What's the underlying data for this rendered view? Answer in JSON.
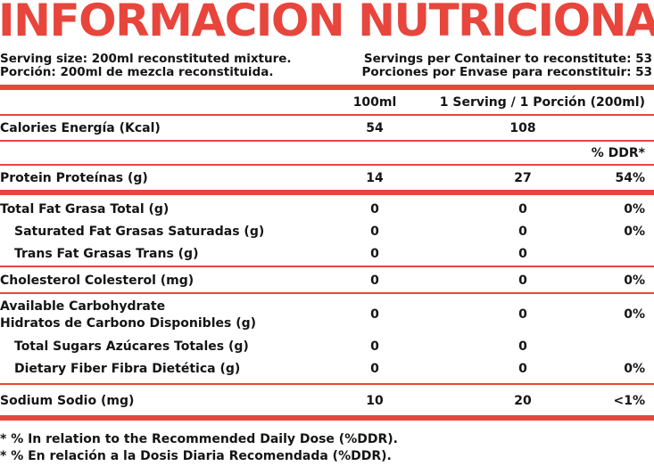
{
  "title": "INFORMACIÓN NUTRICIONAL",
  "serving": {
    "size_en": "Serving size: 200ml reconstituted mixture.",
    "size_es": "Porción: 200ml de mezcla reconstituida.",
    "per_container_en": "Servings per Container to reconstitute: 53",
    "per_container_es": "Porciones por Envase para reconstituir: 53"
  },
  "columns": {
    "per100": "100ml",
    "per_serving": "1 Serving / 1 Porción (200ml)",
    "ddr": "% DDR*"
  },
  "rows": {
    "calories": {
      "label": "Calories   Energía (Kcal)",
      "per100": "54",
      "serving": "108",
      "ddr": ""
    },
    "protein": {
      "label": "Protein   Proteínas (g)",
      "per100": "14",
      "serving": "27",
      "ddr": "54%"
    },
    "total_fat": {
      "label": "Total Fat   Grasa Total (g)",
      "per100": "0",
      "serving": "0",
      "ddr": "0%"
    },
    "sat_fat": {
      "label": "Saturated Fat   Grasas Saturadas (g)",
      "per100": "0",
      "serving": "0",
      "ddr": "0%"
    },
    "trans_fat": {
      "label": "Trans Fat   Grasas Trans (g)",
      "per100": "0",
      "serving": "0",
      "ddr": ""
    },
    "cholesterol": {
      "label": "Cholesterol   Colesterol (mg)",
      "per100": "0",
      "serving": "0",
      "ddr": "0%"
    },
    "carb": {
      "label_en": "Available Carbohydrate",
      "label_es": "Hidratos de Carbono Disponibles (g)",
      "per100": "0",
      "serving": "0",
      "ddr": "0%"
    },
    "sugars": {
      "label": "Total Sugars   Azúcares Totales (g)",
      "per100": "0",
      "serving": "0",
      "ddr": ""
    },
    "fiber": {
      "label": "Dietary Fiber   Fibra Dietética (g)",
      "per100": "0",
      "serving": "0",
      "ddr": "0%"
    },
    "sodium": {
      "label": "Sodium   Sodio (mg)",
      "per100": "10",
      "serving": "20",
      "ddr": "<1%"
    }
  },
  "footnote": {
    "en": "* % In relation to the Recommended Daily Dose (%DDR).",
    "es": "* % En relación a la Dosis Diaria Recomendada (%DDR)."
  },
  "colors": {
    "accent": "#e8453c",
    "text": "#141414"
  }
}
